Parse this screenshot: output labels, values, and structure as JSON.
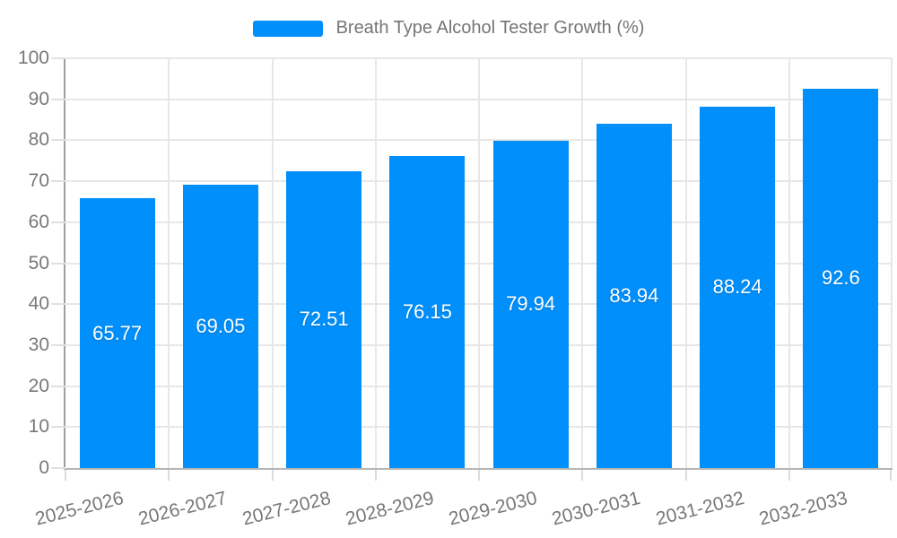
{
  "chart_data": {
    "type": "bar",
    "title": "Breath Type Alcohol Tester Growth (%)",
    "categories": [
      "2025-2026",
      "2026-2027",
      "2027-2028",
      "2028-2029",
      "2029-2030",
      "2030-2031",
      "2031-2032",
      "2032-2033"
    ],
    "series": [
      {
        "name": "Breath Type Alcohol Tester Growth (%)",
        "values": [
          65.77,
          69.05,
          72.51,
          76.15,
          79.94,
          83.94,
          88.24,
          92.6
        ]
      }
    ],
    "data_labels": [
      "65.77",
      "69.05",
      "72.51",
      "76.15",
      "79.94",
      "83.94",
      "88.24",
      "92.6"
    ],
    "data_label_position": "inside-center",
    "xlabel": "",
    "ylabel": "",
    "ylim": [
      0,
      100
    ],
    "ytick_step": 10,
    "yticks": [
      0,
      10,
      20,
      30,
      40,
      50,
      60,
      70,
      80,
      90,
      100
    ],
    "grid": true,
    "legend_position": "top"
  },
  "legend": {
    "label": "Breath Type Alcohol Tester Growth (%)"
  },
  "colors": {
    "bar": "#008FFB",
    "data_label": "#FFFFFF",
    "grid": "#E7E7E7",
    "x_axis_line": "#B6B6B6",
    "y_axis_line": "#9E9E9E",
    "tick": "#DCDCDC",
    "y_tick": "#E0E0E0",
    "axis_label": "#77787C",
    "legend_text": "#757575",
    "background": "#FFFFFF"
  }
}
